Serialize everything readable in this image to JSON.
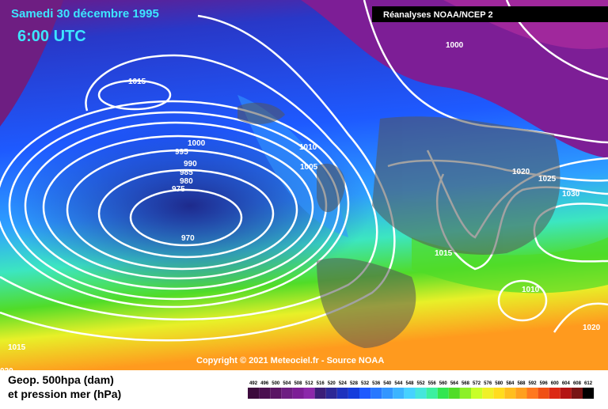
{
  "header": {
    "title": "Samedi 30 décembre 1995",
    "time": "6:00 UTC",
    "source": "Réanalyses NOAA/NCEP 2"
  },
  "isobars": [
    "1015",
    "1000",
    "995",
    "990",
    "985",
    "980",
    "975",
    "970",
    "1010",
    "1005",
    "1000",
    "1020",
    "1025",
    "1030",
    "1015",
    "1010",
    "1020",
    "1015",
    "020"
  ],
  "copyright": "Copyright © 2021 Meteociel.fr - Source NOAA",
  "legend": {
    "line1": "Geop. 500hpa (dam)",
    "line2": "et pression mer (hPa)",
    "scale": [
      492,
      496,
      500,
      504,
      508,
      512,
      516,
      520,
      524,
      528,
      532,
      536,
      540,
      544,
      548,
      552,
      556,
      560,
      564,
      568,
      572,
      576,
      580,
      584,
      588,
      592,
      596,
      600,
      604,
      608,
      612
    ],
    "colors": [
      "#3c0a3c",
      "#4b0f50",
      "#5a1464",
      "#6e1e82",
      "#7d1e96",
      "#8c28aa",
      "#3c1e78",
      "#2d2896",
      "#1e32be",
      "#143cdc",
      "#1e5aff",
      "#2878ff",
      "#3296ff",
      "#3cb4ff",
      "#46d2ff",
      "#46e6dc",
      "#3cf0a0",
      "#32e650",
      "#50dc28",
      "#8cf028",
      "#c8ff28",
      "#f0f028",
      "#ffdc1e",
      "#ffbe1e",
      "#ffa01e",
      "#ff781e",
      "#f05014",
      "#dc2814",
      "#b41414",
      "#781414",
      "#000000"
    ]
  }
}
